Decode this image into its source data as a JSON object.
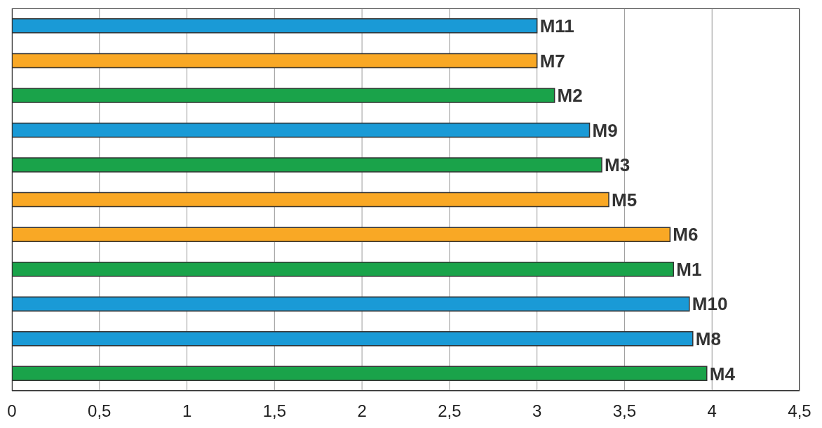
{
  "chart_data": {
    "type": "bar",
    "orientation": "horizontal",
    "categories": [
      "M11",
      "M7",
      "M2",
      "M9",
      "M3",
      "M5",
      "M6",
      "M1",
      "M10",
      "M8",
      "M4"
    ],
    "values": [
      3.0,
      3.0,
      3.1,
      3.3,
      3.37,
      3.41,
      3.76,
      3.78,
      3.87,
      3.89,
      3.97
    ],
    "colors": [
      "#1a9ad6",
      "#f9a825",
      "#1aa34a",
      "#1a9ad6",
      "#1aa34a",
      "#f9a825",
      "#f9a825",
      "#1aa34a",
      "#1a9ad6",
      "#1a9ad6",
      "#1aa34a"
    ],
    "xlim": [
      0,
      4.5
    ],
    "xticks": [
      0,
      {
        "value": 0.5,
        "label": "0,5"
      },
      1,
      {
        "value": 1.5,
        "label": "1,5"
      },
      2,
      {
        "value": 2.5,
        "label": "2,5"
      },
      3,
      {
        "value": 3.5,
        "label": "3,5"
      },
      4,
      {
        "value": 4.5,
        "label": "4,5"
      }
    ],
    "grid": "x",
    "tick_labels": "x"
  }
}
